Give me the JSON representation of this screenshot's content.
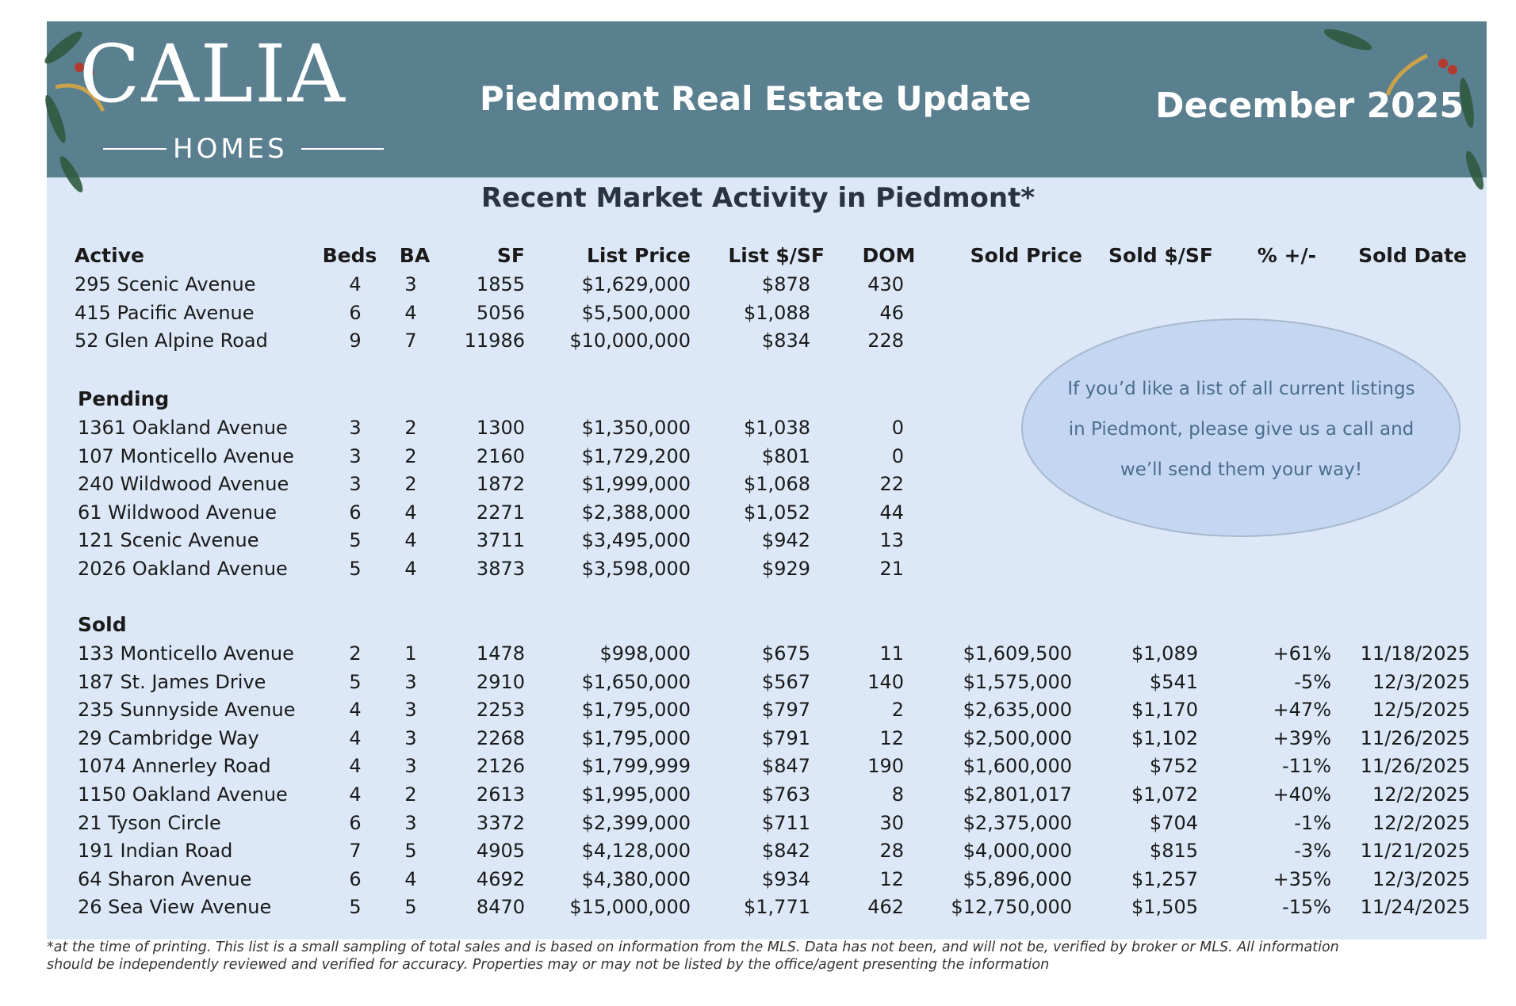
{
  "header": {
    "logo": "CALIA",
    "logo_sub": "HOMES",
    "title": "Piedmont Real Estate Update",
    "date": "December 2025"
  },
  "subtitle": "Recent Market Activity in Piedmont*",
  "table": {
    "columns": [
      "Beds",
      "BA",
      "SF",
      "List Price",
      "List $/SF",
      "DOM",
      "Sold Price",
      "Sold $/SF",
      "% +/-",
      "Sold Date"
    ],
    "sections": [
      {
        "title": "Active",
        "rows": [
          [
            "295 Scenic Avenue",
            "4",
            "3",
            "1855",
            "$1,629,000",
            "$878",
            "430"
          ],
          [
            "415 Pacific Avenue",
            "6",
            "4",
            "5056",
            "$5,500,000",
            "$1,088",
            "46"
          ],
          [
            "52 Glen Alpine Road",
            "9",
            "7",
            "11986",
            "$10,000,000",
            "$834",
            "228"
          ]
        ]
      },
      {
        "title": "Pending",
        "rows": [
          [
            "1361 Oakland Avenue",
            "3",
            "2",
            "1300",
            "$1,350,000",
            "$1,038",
            "0"
          ],
          [
            "107 Monticello Avenue",
            "3",
            "2",
            "2160",
            "$1,729,200",
            "$801",
            "0"
          ],
          [
            "240 Wildwood Avenue",
            "3",
            "2",
            "1872",
            "$1,999,000",
            "$1,068",
            "22"
          ],
          [
            "61 Wildwood Avenue",
            "6",
            "4",
            "2271",
            "$2,388,000",
            "$1,052",
            "44"
          ],
          [
            "121 Scenic Avenue",
            "5",
            "4",
            "3711",
            "$3,495,000",
            "$942",
            "13"
          ],
          [
            "2026 Oakland Avenue",
            "5",
            "4",
            "3873",
            "$3,598,000",
            "$929",
            "21"
          ]
        ]
      },
      {
        "title": "Sold",
        "rows": [
          [
            "133 Monticello Avenue",
            "2",
            "1",
            "1478",
            "$998,000",
            "$675",
            "11",
            "$1,609,500",
            "$1,089",
            "+61%",
            "11/18/2025"
          ],
          [
            "187 St. James Drive",
            "5",
            "3",
            "2910",
            "$1,650,000",
            "$567",
            "140",
            "$1,575,000",
            "$541",
            "-5%",
            "12/3/2025"
          ],
          [
            "235 Sunnyside Avenue",
            "4",
            "3",
            "2253",
            "$1,795,000",
            "$797",
            "2",
            "$2,635,000",
            "$1,170",
            "+47%",
            "12/5/2025"
          ],
          [
            "29 Cambridge Way",
            "4",
            "3",
            "2268",
            "$1,795,000",
            "$791",
            "12",
            "$2,500,000",
            "$1,102",
            "+39%",
            "11/26/2025"
          ],
          [
            "1074 Annerley Road",
            "4",
            "3",
            "2126",
            "$1,799,999",
            "$847",
            "190",
            "$1,600,000",
            "$752",
            "-11%",
            "11/26/2025"
          ],
          [
            "1150 Oakland Avenue",
            "4",
            "2",
            "2613",
            "$1,995,000",
            "$763",
            "8",
            "$2,801,017",
            "$1,072",
            "+40%",
            "12/2/2025"
          ],
          [
            "21 Tyson Circle",
            "6",
            "3",
            "3372",
            "$2,399,000",
            "$711",
            "30",
            "$2,375,000",
            "$704",
            "-1%",
            "12/2/2025"
          ],
          [
            "191 Indian Road",
            "7",
            "5",
            "4905",
            "$4,128,000",
            "$842",
            "28",
            "$4,000,000",
            "$815",
            "-3%",
            "11/21/2025"
          ],
          [
            "64 Sharon Avenue",
            "6",
            "4",
            "4692",
            "$4,380,000",
            "$934",
            "12",
            "$5,896,000",
            "$1,257",
            "+35%",
            "12/3/2025"
          ],
          [
            "26 Sea View Avenue",
            "5",
            "5",
            "8470",
            "$15,000,000",
            "$1,771",
            "462",
            "$12,750,000",
            "$1,505",
            "-15%",
            "11/24/2025"
          ]
        ]
      }
    ]
  },
  "callout": [
    "If you’d like a list of all current listings",
    "in Piedmont, please give us a call and",
    "we’ll send them your way!"
  ],
  "footnote": [
    "*at the time of printing. This list is a small sampling of total sales and is based on information from the MLS. Data has not been, and will not be, verified by broker or MLS. All information",
    "should be independently reviewed and verified for accuracy. Properties may or may not be listed by the office/agent presenting the information"
  ]
}
